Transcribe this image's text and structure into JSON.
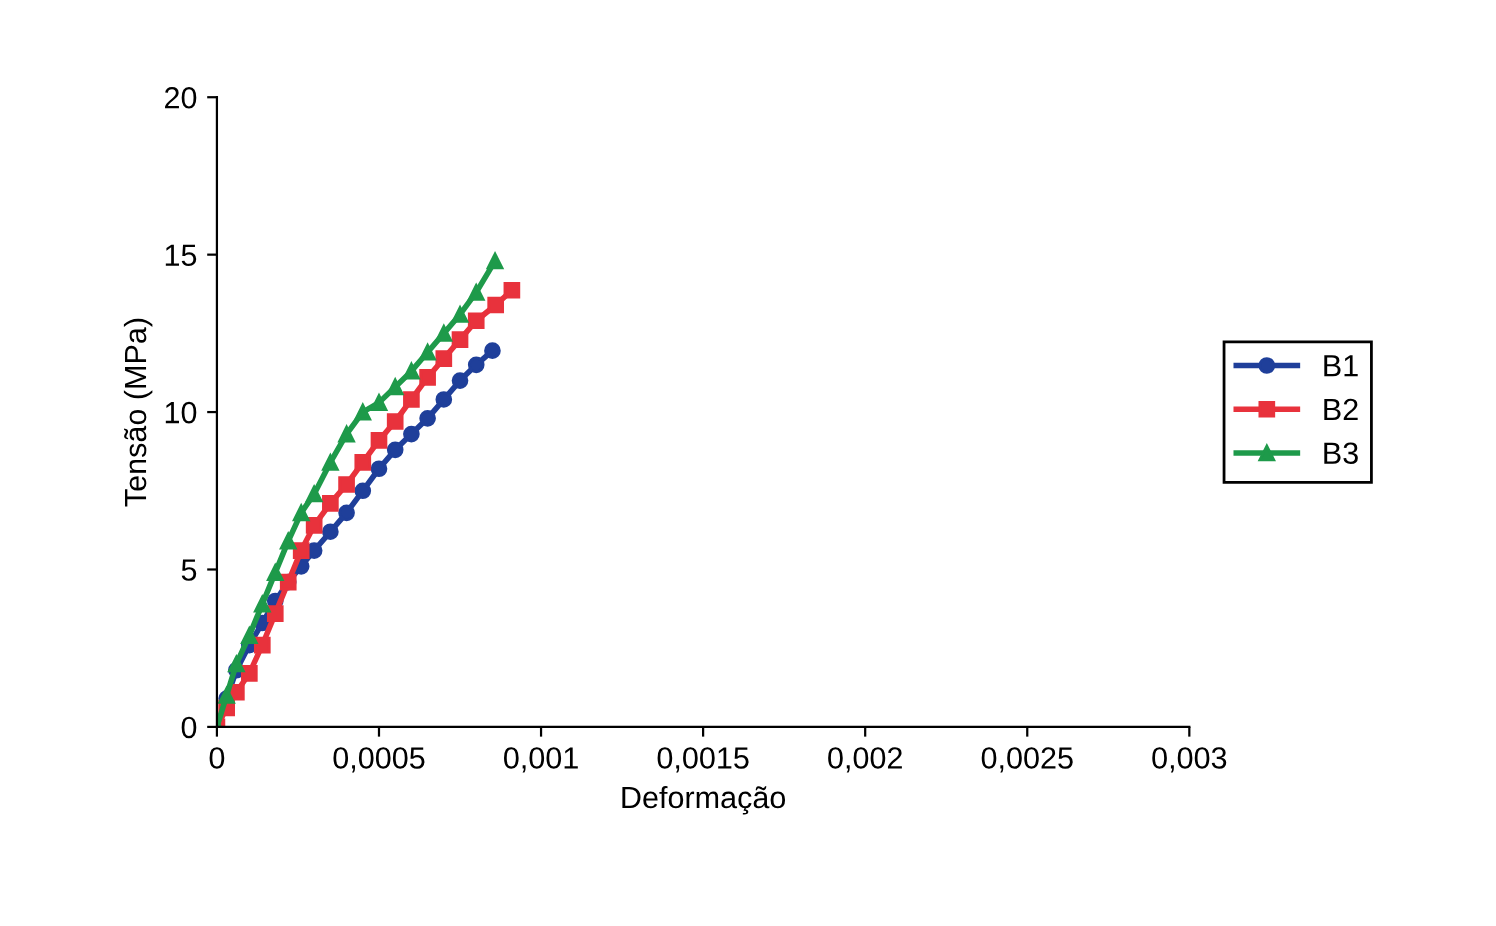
{
  "chart_data": {
    "type": "line",
    "xlabel": "Deformação",
    "ylabel": "Tensão (MPa)",
    "xlim": [
      0,
      0.003
    ],
    "ylim": [
      0,
      20
    ],
    "xticks": [
      {
        "value": 0,
        "label": "0"
      },
      {
        "value": 0.0005,
        "label": "0,0005"
      },
      {
        "value": 0.001,
        "label": "0,001"
      },
      {
        "value": 0.0015,
        "label": "0,0015"
      },
      {
        "value": 0.002,
        "label": "0,002"
      },
      {
        "value": 0.0025,
        "label": "0,0025"
      },
      {
        "value": 0.003,
        "label": "0,003"
      }
    ],
    "yticks": [
      0,
      5,
      10,
      15,
      20
    ],
    "grid": false,
    "legend": "right",
    "line_style": "solid",
    "series": [
      {
        "name": "B1",
        "color": "#1f3f9a",
        "marker": "circle",
        "x": [
          0,
          3e-05,
          6e-05,
          0.0001,
          0.00014,
          0.00018,
          0.00022,
          0.00026,
          0.0003,
          0.00035,
          0.0004,
          0.00045,
          0.0005,
          0.00055,
          0.0006,
          0.00065,
          0.0007,
          0.00075,
          0.0008,
          0.00085
        ],
        "values": [
          0,
          0.9,
          1.8,
          2.6,
          3.3,
          4.0,
          4.6,
          5.1,
          5.6,
          6.2,
          6.8,
          7.5,
          8.2,
          8.8,
          9.3,
          9.8,
          10.4,
          11.0,
          11.5,
          11.95
        ]
      },
      {
        "name": "B2",
        "color": "#e8323c",
        "marker": "square",
        "x": [
          0,
          3e-05,
          6e-05,
          0.0001,
          0.00014,
          0.00018,
          0.00022,
          0.00026,
          0.0003,
          0.00035,
          0.0004,
          0.00045,
          0.0005,
          0.00055,
          0.0006,
          0.00065,
          0.0007,
          0.00075,
          0.0008,
          0.00086,
          0.00091
        ],
        "values": [
          0,
          0.6,
          1.1,
          1.7,
          2.6,
          3.6,
          4.6,
          5.6,
          6.4,
          7.1,
          7.7,
          8.4,
          9.1,
          9.7,
          10.4,
          11.1,
          11.7,
          12.3,
          12.9,
          13.4,
          13.87
        ]
      },
      {
        "name": "B3",
        "color": "#1e9a4a",
        "marker": "triangle",
        "x": [
          0,
          3e-05,
          6e-05,
          0.0001,
          0.00014,
          0.00018,
          0.00022,
          0.00026,
          0.0003,
          0.00035,
          0.0004,
          0.00045,
          0.0005,
          0.00055,
          0.0006,
          0.00065,
          0.0007,
          0.00075,
          0.0008,
          0.000858
        ],
        "values": [
          0,
          1.0,
          2.0,
          2.9,
          3.9,
          4.9,
          5.9,
          6.8,
          7.4,
          8.4,
          9.3,
          10.0,
          10.3,
          10.8,
          11.3,
          11.9,
          12.5,
          13.1,
          13.8,
          14.8
        ]
      }
    ]
  }
}
